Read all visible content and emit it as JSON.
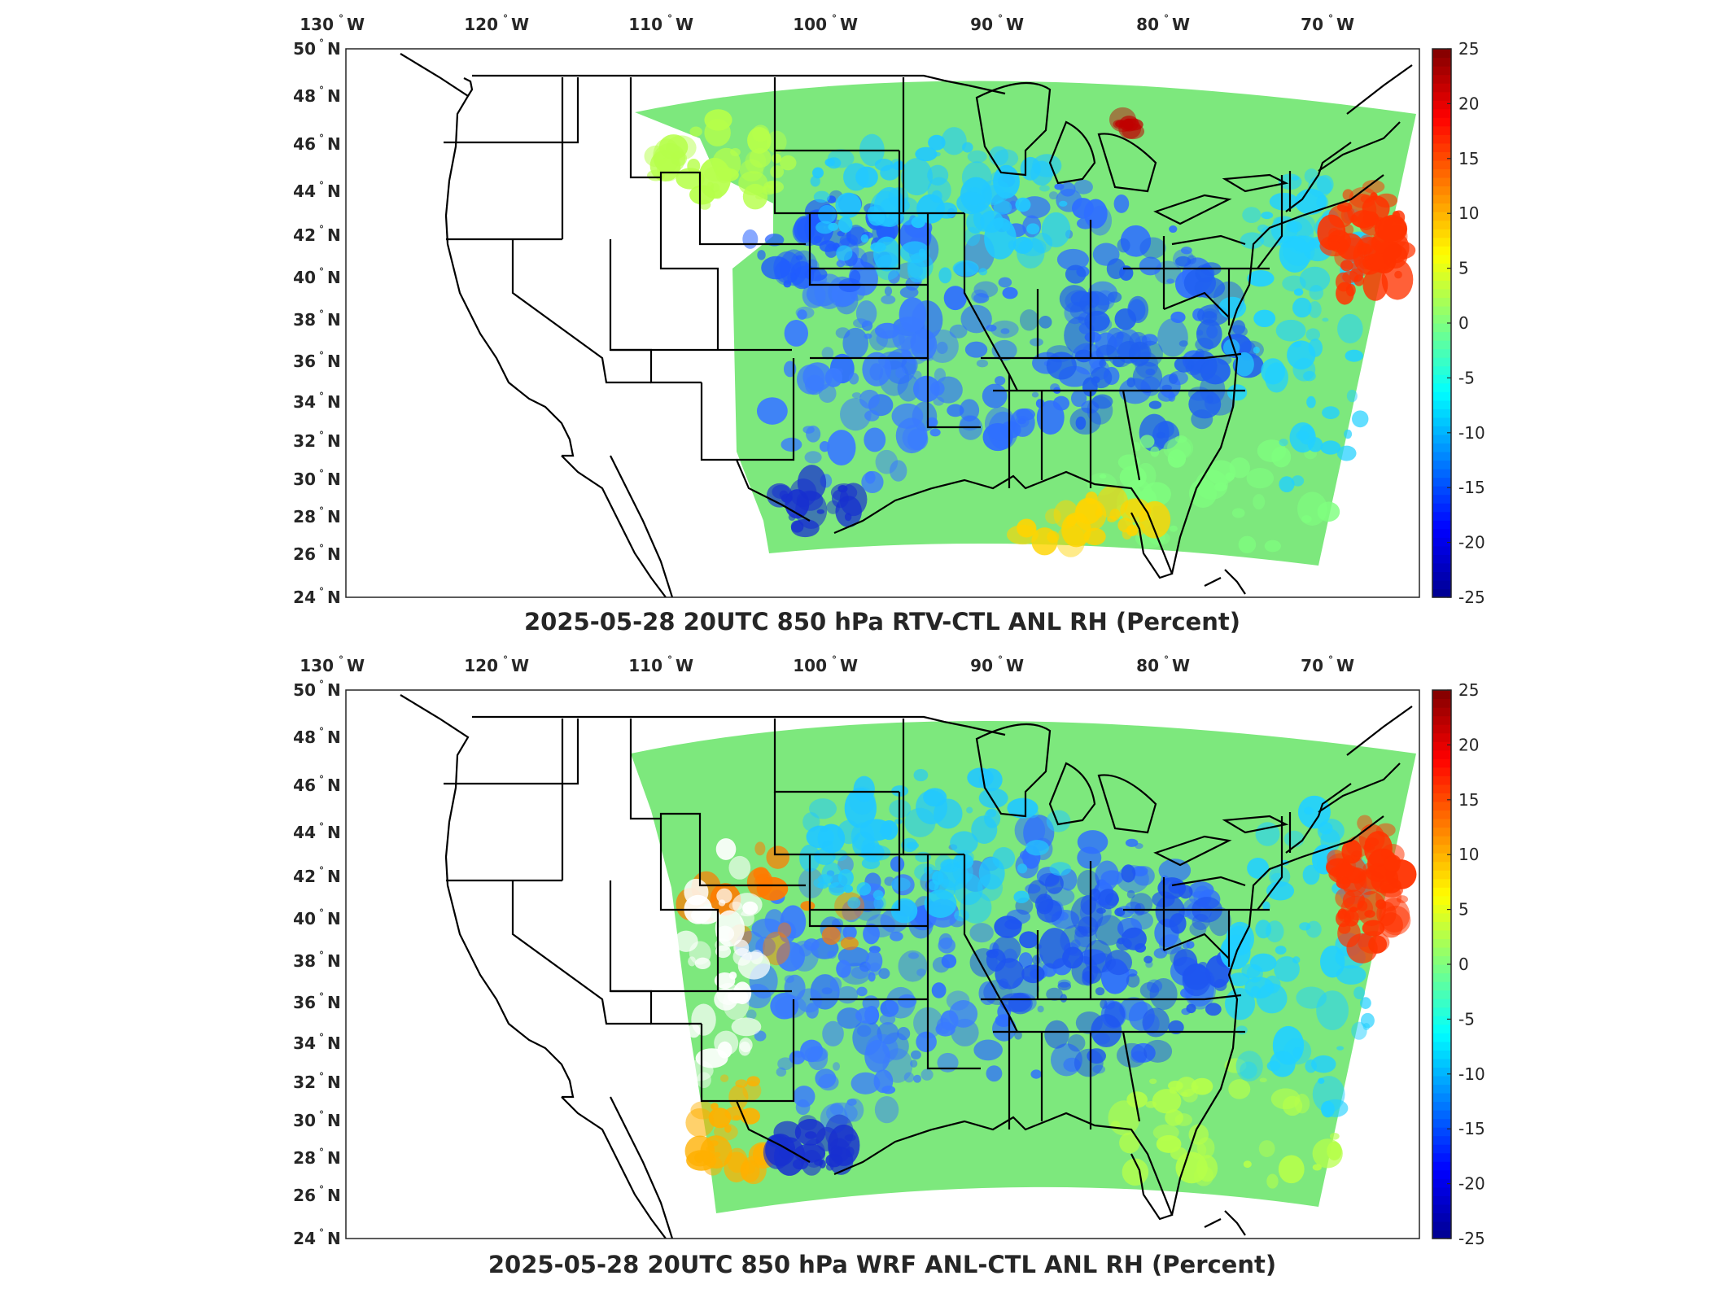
{
  "colors": {
    "colormap": [
      "#00008f",
      "#0000ff",
      "#007fff",
      "#00ffff",
      "#7fff7f",
      "#ffff00",
      "#ff7f00",
      "#ff0000",
      "#800000"
    ],
    "frame": "#262626",
    "land_outline": "#000000"
  },
  "panels": [
    {
      "id": "top",
      "title": "2025-05-28 20UTC 850 hPa RTV-CTL ANL RH (Percent)",
      "map_data": {
        "type": "heatmap",
        "projection": "Lambert conformal",
        "lon_range_west": [
          130,
          65
        ],
        "lat_range_north": [
          24,
          50
        ],
        "lon_ticks": [
          {
            "deg": "130",
            "dir": "W"
          },
          {
            "deg": "120",
            "dir": "W"
          },
          {
            "deg": "110",
            "dir": "W"
          },
          {
            "deg": "100",
            "dir": "W"
          },
          {
            "deg": "90",
            "dir": "W"
          },
          {
            "deg": "80",
            "dir": "W"
          },
          {
            "deg": "70",
            "dir": "W"
          }
        ],
        "lat_ticks": [
          {
            "deg": "50",
            "dir": "N"
          },
          {
            "deg": "48",
            "dir": "N"
          },
          {
            "deg": "46",
            "dir": "N"
          },
          {
            "deg": "44",
            "dir": "N"
          },
          {
            "deg": "42",
            "dir": "N"
          },
          {
            "deg": "40",
            "dir": "N"
          },
          {
            "deg": "38",
            "dir": "N"
          },
          {
            "deg": "36",
            "dir": "N"
          },
          {
            "deg": "34",
            "dir": "N"
          },
          {
            "deg": "32",
            "dir": "N"
          },
          {
            "deg": "30",
            "dir": "N"
          },
          {
            "deg": "28",
            "dir": "N"
          },
          {
            "deg": "26",
            "dir": "N"
          },
          {
            "deg": "24",
            "dir": "N"
          }
        ],
        "colorbar": {
          "min": -25,
          "max": 25,
          "ticks": [
            "25",
            "20",
            "15",
            "10",
            "5",
            "0",
            "-5",
            "-10",
            "-15",
            "-20",
            "-25"
          ]
        }
      }
    },
    {
      "id": "bottom",
      "title": "2025-05-28 20UTC 850 hPa WRF ANL-CTL ANL RH (Percent)",
      "map_data": {
        "type": "heatmap",
        "projection": "Lambert conformal",
        "lon_range_west": [
          130,
          65
        ],
        "lat_range_north": [
          24,
          50
        ],
        "lon_ticks": [
          {
            "deg": "130",
            "dir": "W"
          },
          {
            "deg": "120",
            "dir": "W"
          },
          {
            "deg": "110",
            "dir": "W"
          },
          {
            "deg": "100",
            "dir": "W"
          },
          {
            "deg": "90",
            "dir": "W"
          },
          {
            "deg": "80",
            "dir": "W"
          },
          {
            "deg": "70",
            "dir": "W"
          }
        ],
        "lat_ticks": [
          {
            "deg": "50",
            "dir": "N"
          },
          {
            "deg": "48",
            "dir": "N"
          },
          {
            "deg": "46",
            "dir": "N"
          },
          {
            "deg": "44",
            "dir": "N"
          },
          {
            "deg": "42",
            "dir": "N"
          },
          {
            "deg": "40",
            "dir": "N"
          },
          {
            "deg": "38",
            "dir": "N"
          },
          {
            "deg": "36",
            "dir": "N"
          },
          {
            "deg": "34",
            "dir": "N"
          },
          {
            "deg": "32",
            "dir": "N"
          },
          {
            "deg": "30",
            "dir": "N"
          },
          {
            "deg": "28",
            "dir": "N"
          },
          {
            "deg": "26",
            "dir": "N"
          },
          {
            "deg": "24",
            "dir": "N"
          }
        ],
        "colorbar": {
          "min": -25,
          "max": 25,
          "ticks": [
            "25",
            "20",
            "15",
            "10",
            "5",
            "0",
            "-5",
            "-10",
            "-15",
            "-20",
            "-25"
          ]
        }
      }
    }
  ]
}
